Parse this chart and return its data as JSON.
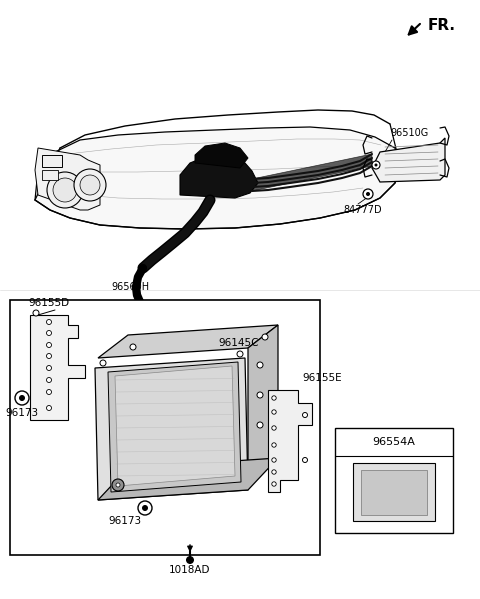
{
  "bg": "#ffffff",
  "black": "#000000",
  "dark": "#0a0a0a",
  "lgray": "#e8e8e8",
  "mgray": "#c8c8c8",
  "dgray": "#999999",
  "labels": {
    "fr": "FR.",
    "l96510G": "96510G",
    "l84777D": "84777D",
    "l96560H": "96560H",
    "l96155D": "96155D",
    "l96145C": "96145C",
    "l96155E": "96155E",
    "l96173a": "96173",
    "l96173b": "96173",
    "l1018AD": "1018AD",
    "l96554A": "96554A"
  }
}
